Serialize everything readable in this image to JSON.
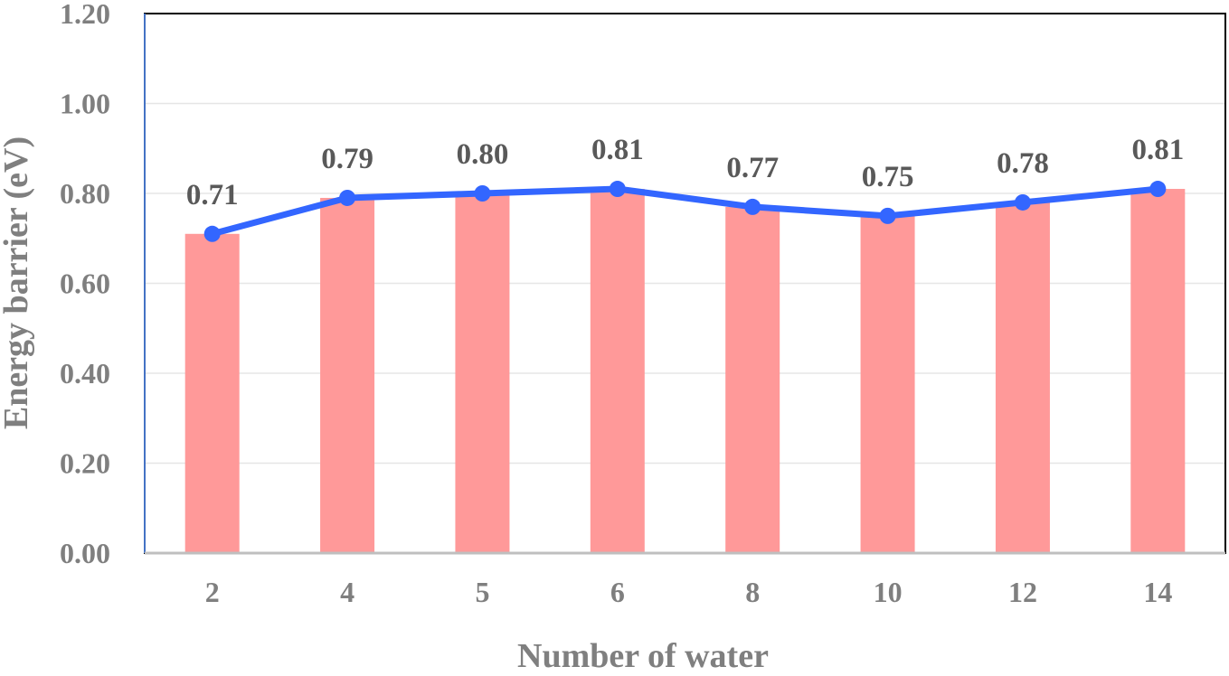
{
  "chart_data": {
    "type": "bar",
    "categories": [
      "2",
      "4",
      "5",
      "6",
      "8",
      "10",
      "12",
      "14"
    ],
    "values": [
      0.71,
      0.79,
      0.8,
      0.81,
      0.77,
      0.75,
      0.78,
      0.81
    ],
    "line_values": [
      0.71,
      0.79,
      0.8,
      0.81,
      0.77,
      0.75,
      0.78,
      0.81
    ],
    "data_labels": [
      "0.71",
      "0.79",
      "0.80",
      "0.81",
      "0.77",
      "0.75",
      "0.78",
      "0.81"
    ],
    "xlabel": "Number of water",
    "ylabel": "Energy barrier (eV)",
    "ylim": [
      0,
      1.2
    ],
    "yticks": [
      "0.00",
      "0.20",
      "0.40",
      "0.60",
      "0.80",
      "1.00",
      "1.20"
    ],
    "grid": true,
    "legend": "none",
    "overlay": "line with markers",
    "colors": {
      "bar": "#ff9999",
      "line": "#3366ff",
      "text": "#7f7f7f",
      "data_label": "#595959",
      "grid": "#e6e6e6",
      "frame": "#000000",
      "left_axis": "#4472c4"
    }
  }
}
